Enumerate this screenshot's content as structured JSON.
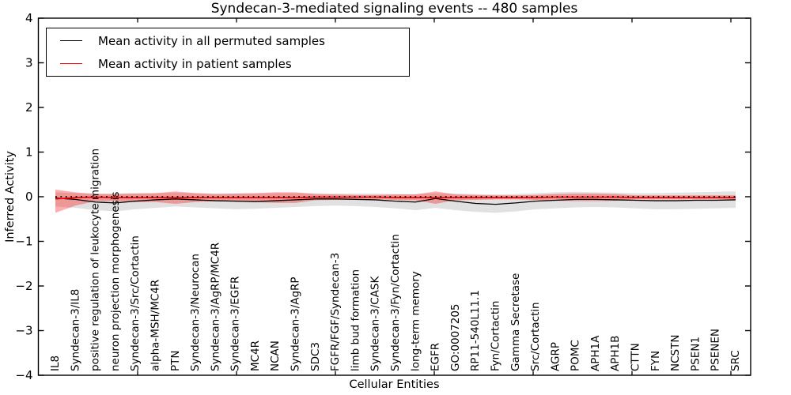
{
  "chart_data": {
    "type": "line",
    "title": "Syndecan-3-mediated signaling events -- 480 samples",
    "xlabel": "Cellular Entities",
    "ylabel": "Inferred Activity",
    "ylim": [
      -4,
      4
    ],
    "yticks": [
      4,
      3,
      2,
      1,
      0,
      -1,
      -2,
      -3,
      -4
    ],
    "grid": false,
    "zero_line": {
      "style": "dotted",
      "color": "#000000",
      "y": 0
    },
    "legend": {
      "position": "upper left",
      "entries": [
        {
          "label": "Mean activity in all permuted samples",
          "color": "#000000"
        },
        {
          "label": "Mean activity in patient samples",
          "color": "#ff0000"
        }
      ]
    },
    "categories": [
      "IL8",
      "Syndecan-3/IL8",
      "positive regulation of leukocyte migration",
      "neuron projection morphogenesis",
      "Syndecan-3/Src/Cortactin",
      "alpha-MSH/MC4R",
      "PTN",
      "Syndecan-3/Neurocan",
      "Syndecan-3/AgRP/MC4R",
      "Syndecan-3/EGFR",
      "MC4R",
      "NCAN",
      "Syndecan-3/AgRP",
      "SDC3",
      "FGFR/FGF/Syndecan-3",
      "limb bud formation",
      "Syndecan-3/CASK",
      "Syndecan-3/Fyn/Cortactin",
      "long-term memory",
      "EGFR",
      "GO:0007205",
      "RP11-540L11.1",
      "Fyn/Cortactin",
      "Gamma Secretase",
      "Src/Cortactin",
      "AGRP",
      "POMC",
      "APH1A",
      "APH1B",
      "CTTN",
      "FYN",
      "NCSTN",
      "PSEN1",
      "PSENEN",
      "SRC"
    ],
    "series": [
      {
        "name": "Mean activity in all permuted samples",
        "color": "#000000",
        "width": 1.3,
        "values": [
          -0.03,
          -0.06,
          -0.12,
          -0.14,
          -0.1,
          -0.07,
          -0.05,
          -0.07,
          -0.09,
          -0.1,
          -0.11,
          -0.09,
          -0.07,
          -0.05,
          -0.05,
          -0.06,
          -0.07,
          -0.1,
          -0.12,
          -0.04,
          -0.1,
          -0.15,
          -0.17,
          -0.14,
          -0.1,
          -0.08,
          -0.06,
          -0.06,
          -0.07,
          -0.08,
          -0.09,
          -0.09,
          -0.08,
          -0.08,
          -0.07
        ]
      },
      {
        "name": "Mean activity in patient samples",
        "color": "#ff0000",
        "width": 1.7,
        "values": [
          -0.05,
          -0.02,
          -0.01,
          -0.02,
          -0.02,
          -0.02,
          -0.02,
          -0.02,
          -0.02,
          -0.02,
          -0.02,
          -0.02,
          -0.02,
          -0.01,
          -0.01,
          -0.01,
          -0.01,
          -0.02,
          -0.02,
          -0.02,
          -0.02,
          -0.02,
          -0.02,
          -0.02,
          -0.02,
          -0.01,
          -0.01,
          -0.01,
          -0.01,
          -0.02,
          -0.02,
          -0.02,
          -0.02,
          -0.02,
          -0.02
        ]
      }
    ],
    "bands": [
      {
        "name": "permuted-range",
        "color": "#c4c4c4",
        "opacity": 0.5,
        "upper": [
          0.1,
          0.08,
          0.07,
          0.07,
          0.08,
          0.08,
          0.09,
          0.08,
          0.07,
          0.07,
          0.07,
          0.08,
          0.08,
          0.08,
          0.07,
          0.07,
          0.07,
          0.06,
          0.06,
          0.08,
          0.07,
          0.06,
          0.05,
          0.06,
          0.08,
          0.1,
          0.11,
          0.1,
          0.09,
          0.08,
          0.08,
          0.09,
          0.1,
          0.11,
          0.12
        ],
        "lower": [
          -0.22,
          -0.25,
          -0.3,
          -0.33,
          -0.28,
          -0.25,
          -0.22,
          -0.24,
          -0.26,
          -0.28,
          -0.27,
          -0.25,
          -0.23,
          -0.21,
          -0.2,
          -0.21,
          -0.23,
          -0.26,
          -0.3,
          -0.25,
          -0.3,
          -0.34,
          -0.36,
          -0.33,
          -0.28,
          -0.26,
          -0.24,
          -0.23,
          -0.24,
          -0.26,
          -0.28,
          -0.28,
          -0.27,
          -0.26,
          -0.25
        ]
      },
      {
        "name": "patient-range",
        "color": "#ff0000",
        "opacity": 0.32,
        "upper": [
          0.16,
          0.1,
          0.06,
          0.06,
          0.07,
          0.08,
          0.12,
          0.08,
          0.06,
          0.07,
          0.08,
          0.1,
          0.1,
          0.06,
          0.05,
          0.04,
          0.04,
          0.05,
          0.05,
          0.12,
          0.05,
          0.04,
          0.03,
          0.03,
          0.04,
          0.06,
          0.07,
          0.07,
          0.06,
          0.03,
          0.03,
          0.03,
          0.03,
          0.03,
          0.03
        ],
        "lower": [
          -0.36,
          -0.2,
          -0.1,
          -0.1,
          -0.12,
          -0.12,
          -0.16,
          -0.12,
          -0.1,
          -0.11,
          -0.12,
          -0.14,
          -0.14,
          -0.08,
          -0.07,
          -0.06,
          -0.06,
          -0.07,
          -0.08,
          -0.16,
          -0.08,
          -0.07,
          -0.06,
          -0.06,
          -0.07,
          -0.09,
          -0.1,
          -0.1,
          -0.09,
          -0.06,
          -0.06,
          -0.06,
          -0.06,
          -0.06,
          -0.06
        ]
      }
    ]
  }
}
